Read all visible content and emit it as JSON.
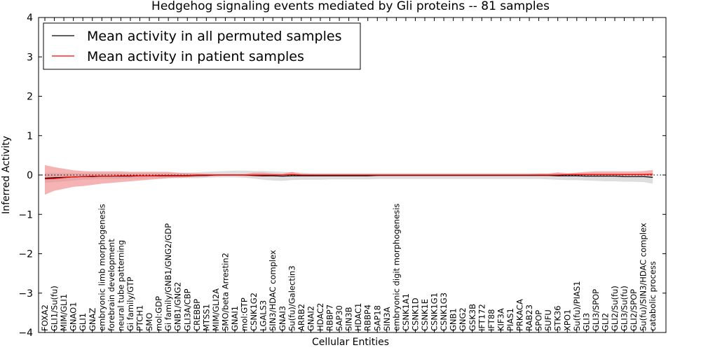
{
  "chart_data": {
    "type": "line",
    "title": "Hedgehog signaling events mediated by Gli proteins -- 81 samples",
    "xlabel": "Cellular Entities",
    "ylabel": "Inferred Activity",
    "ylim": [
      -4,
      4
    ],
    "yticks": [
      "4",
      "3",
      "2",
      "1",
      "0",
      "−1",
      "−2",
      "−3",
      "−4"
    ],
    "yticks_values": [
      4,
      3,
      2,
      1,
      0,
      -1,
      -2,
      -3,
      -4
    ],
    "legend_position": "top-left",
    "categories": [
      "FOXA2",
      "GLI1/Su(fu)",
      "MIM/GLI1",
      "GNAO1",
      "GLI1",
      "GNAZ",
      "embryonic limb morphogenesis",
      "forebrain development",
      "neural tube patterning",
      "Gi family/GTP",
      "PTCH1",
      "SMO",
      "mol:GDP",
      "Gi family/GNB1/GNG2/GDP",
      "GNB1/GNG2",
      "GLI3A/CBP",
      "CREBBP",
      "MTSS1",
      "MIM/GLI2A",
      "SMO/beta Arrestin2",
      "GNAI1",
      "mol:GTP",
      "CSNK1G2",
      "LGALS3",
      "SIN3/HDAC complex",
      "GNAI3",
      "Su(fu)/Galectin3",
      "ARRB2",
      "GNAI2",
      "HDAC2",
      "RBBP7",
      "SAP30",
      "SIN3B",
      "HDAC1",
      "RBBP4",
      "SAP18",
      "SIN3A",
      "embryonic digit morphogenesis",
      "CSNK1A1",
      "CSNK1D",
      "CSNK1E",
      "CSNK1G1",
      "CSNK1G3",
      "GNB1",
      "GNG2",
      "GSK3B",
      "IFT172",
      "IFT88",
      "KIF3A",
      "PIAS1",
      "PRKACA",
      "RAB23",
      "SPOP",
      "SUFU",
      "STK36",
      "XPO1",
      "Su(fu)/PIAS1",
      "GLI3",
      "GLI3/SPOP",
      "GLI2",
      "GLI2/Su(fu)",
      "GLI3/Su(fu)",
      "GLI2/SPOP",
      "Su(fu)/SIN3/HDAC complex",
      "catabolic process"
    ],
    "series": [
      {
        "name": "Mean activity in all permuted samples",
        "color": "#000000",
        "band_color": "#d3d3d3",
        "values": [
          -0.08,
          -0.07,
          -0.06,
          -0.05,
          -0.04,
          -0.04,
          -0.03,
          -0.03,
          -0.03,
          -0.03,
          -0.02,
          -0.02,
          -0.02,
          -0.02,
          -0.02,
          -0.02,
          -0.01,
          -0.01,
          0,
          0,
          0,
          0,
          -0.01,
          -0.02,
          -0.02,
          -0.03,
          -0.02,
          -0.02,
          -0.02,
          -0.02,
          -0.02,
          -0.02,
          -0.02,
          -0.02,
          -0.02,
          -0.01,
          -0.01,
          -0.01,
          -0.01,
          -0.01,
          -0.01,
          -0.01,
          -0.01,
          -0.01,
          -0.01,
          -0.01,
          -0.01,
          -0.01,
          -0.01,
          -0.01,
          -0.01,
          -0.01,
          -0.01,
          -0.01,
          -0.02,
          -0.02,
          -0.02,
          -0.03,
          -0.03,
          -0.03,
          -0.03,
          -0.04,
          -0.04,
          -0.04,
          -0.06
        ],
        "upper": [
          0.05,
          0.05,
          0.05,
          0.05,
          0.05,
          0.05,
          0.05,
          0.05,
          0.05,
          0.05,
          0.05,
          0.05,
          0.05,
          0.05,
          0.05,
          0.06,
          0.07,
          0.08,
          0.09,
          0.1,
          0.11,
          0.11,
          0.1,
          0.1,
          0.09,
          0.08,
          0.07,
          0.06,
          0.05,
          0.05,
          0.05,
          0.05,
          0.05,
          0.05,
          0.05,
          0.05,
          0.05,
          0.05,
          0.05,
          0.05,
          0.05,
          0.05,
          0.05,
          0.05,
          0.05,
          0.05,
          0.05,
          0.05,
          0.05,
          0.05,
          0.05,
          0.05,
          0.05,
          0.05,
          0.05,
          0.05,
          0.05,
          0.05,
          0.05,
          0.05,
          0.05,
          0.05,
          0.05,
          0.05,
          0.05
        ],
        "lower": [
          -0.2,
          -0.18,
          -0.16,
          -0.14,
          -0.12,
          -0.11,
          -0.1,
          -0.1,
          -0.1,
          -0.09,
          -0.09,
          -0.08,
          -0.08,
          -0.08,
          -0.08,
          -0.08,
          -0.08,
          -0.07,
          -0.06,
          -0.06,
          -0.06,
          -0.07,
          -0.09,
          -0.12,
          -0.14,
          -0.15,
          -0.13,
          -0.12,
          -0.12,
          -0.12,
          -0.11,
          -0.11,
          -0.11,
          -0.11,
          -0.11,
          -0.1,
          -0.1,
          -0.1,
          -0.1,
          -0.1,
          -0.1,
          -0.1,
          -0.1,
          -0.1,
          -0.1,
          -0.1,
          -0.1,
          -0.1,
          -0.1,
          -0.1,
          -0.1,
          -0.1,
          -0.1,
          -0.11,
          -0.12,
          -0.13,
          -0.13,
          -0.14,
          -0.15,
          -0.16,
          -0.16,
          -0.17,
          -0.17,
          -0.18,
          -0.22
        ]
      },
      {
        "name": "Mean activity in patient samples",
        "color": "#ff0000",
        "band_color": "#f08080",
        "values": [
          -0.1,
          -0.09,
          -0.07,
          -0.05,
          -0.04,
          -0.03,
          -0.03,
          -0.03,
          -0.02,
          -0.02,
          -0.02,
          -0.02,
          -0.01,
          -0.01,
          -0.01,
          -0.01,
          0,
          0,
          0,
          0,
          0,
          0,
          0,
          0,
          0,
          0,
          0.01,
          0,
          0,
          0,
          0,
          0,
          0,
          0,
          0,
          0,
          0,
          0,
          0,
          0,
          0,
          0,
          0,
          0,
          0,
          0,
          0,
          0,
          0,
          0,
          0,
          0,
          0,
          0,
          0,
          0.01,
          0.01,
          0.01,
          0.01,
          0.01,
          0.01,
          0.01,
          0.01,
          0.01,
          0.02
        ],
        "upper": [
          0.25,
          0.2,
          0.16,
          0.12,
          0.1,
          0.09,
          0.09,
          0.09,
          0.09,
          0.08,
          0.08,
          0.08,
          0.08,
          0.08,
          0.06,
          0.05,
          0.04,
          0.03,
          0.02,
          0.02,
          0.02,
          0.02,
          0.06,
          0.06,
          0.04,
          0.03,
          0.08,
          0.03,
          0.02,
          0.02,
          0.02,
          0.02,
          0.02,
          0.02,
          0.02,
          0.02,
          0.02,
          0.02,
          0.02,
          0.02,
          0.02,
          0.02,
          0.02,
          0.02,
          0.02,
          0.02,
          0.02,
          0.02,
          0.02,
          0.02,
          0.02,
          0.02,
          0.03,
          0.03,
          0.07,
          0.04,
          0.06,
          0.08,
          0.09,
          0.09,
          0.09,
          0.09,
          0.09,
          0.1,
          0.13
        ],
        "lower": [
          -0.5,
          -0.4,
          -0.35,
          -0.3,
          -0.28,
          -0.25,
          -0.22,
          -0.2,
          -0.18,
          -0.16,
          -0.14,
          -0.12,
          -0.1,
          -0.08,
          -0.07,
          -0.06,
          -0.05,
          -0.04,
          -0.03,
          -0.02,
          -0.02,
          -0.03,
          -0.04,
          -0.04,
          -0.02,
          -0.02,
          -0.02,
          -0.02,
          -0.02,
          -0.02,
          -0.02,
          -0.02,
          -0.02,
          -0.02,
          -0.02,
          -0.02,
          -0.02,
          -0.02,
          -0.02,
          -0.02,
          -0.02,
          -0.02,
          -0.02,
          -0.02,
          -0.02,
          -0.02,
          -0.02,
          -0.02,
          -0.02,
          -0.02,
          -0.02,
          -0.02,
          -0.02,
          -0.02,
          -0.02,
          -0.02,
          -0.02,
          -0.02,
          -0.02,
          -0.02,
          -0.02,
          -0.02,
          -0.02,
          -0.03,
          -0.03
        ]
      }
    ]
  }
}
